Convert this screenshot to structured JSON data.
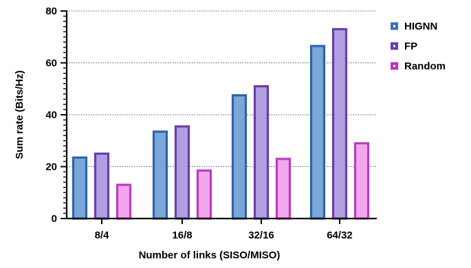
{
  "chart_data": {
    "type": "bar",
    "categories": [
      "8/4",
      "16/8",
      "32/16",
      "64/32"
    ],
    "series": [
      {
        "name": "HIGNN",
        "values": [
          23.5,
          33.5,
          47.5,
          66.5
        ],
        "fill": "#7aa6d8",
        "stroke": "#2e64a6",
        "legend_color": "#3b6fb6"
      },
      {
        "name": "FP",
        "values": [
          25,
          35.5,
          51,
          73
        ],
        "fill": "#b0a0e0",
        "stroke": "#6a3ea8",
        "legend_color": "#6a3ea8"
      },
      {
        "name": "Random",
        "values": [
          13,
          18.5,
          23,
          29
        ],
        "fill": "#f2a6ee",
        "stroke": "#b93dbc",
        "legend_color": "#c030c0"
      }
    ],
    "title": "",
    "xlabel": "Number of links (SISO/MISO)",
    "ylabel": "Sum rate (Bits/Hz)",
    "ylim": [
      0,
      80
    ],
    "yticks": [
      0,
      20,
      40,
      60,
      80
    ],
    "y_minor_step": 2,
    "grid": "horizontal-dotted",
    "legend_position": "top-right"
  }
}
